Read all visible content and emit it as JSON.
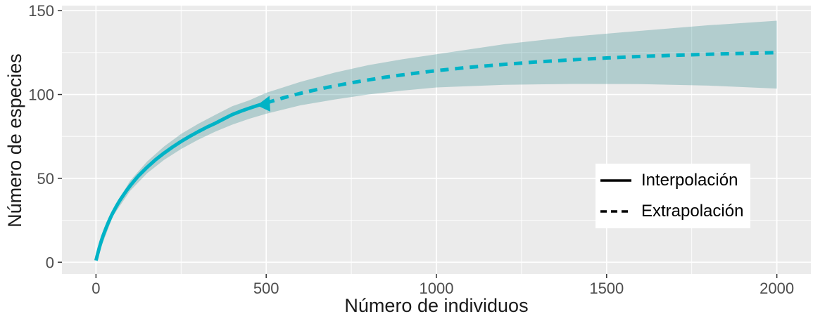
{
  "chart_data": {
    "type": "line",
    "title": "",
    "xlabel": "Número de individuos",
    "ylabel": "Número de especies",
    "xlim": [
      -100,
      2100
    ],
    "ylim": [
      -7,
      153
    ],
    "x_ticks": [
      0,
      500,
      1000,
      1500,
      2000
    ],
    "y_ticks": [
      0,
      50,
      100,
      150
    ],
    "x_minor_ticks": [
      250,
      750,
      1250,
      1750
    ],
    "y_minor_ticks": [
      25,
      75,
      125
    ],
    "grid": true,
    "legend_position": "inside-bottom-right",
    "series": [
      {
        "name": "Interpolación",
        "linetype": "solid",
        "points": [
          [
            0,
            1
          ],
          [
            5,
            5
          ],
          [
            10,
            8.8
          ],
          [
            15,
            12.2
          ],
          [
            20,
            15.3
          ],
          [
            25,
            18.1
          ],
          [
            30,
            20.7
          ],
          [
            35,
            23.1
          ],
          [
            40,
            25.4
          ],
          [
            45,
            27.6
          ],
          [
            50,
            29.6
          ],
          [
            60,
            33.4
          ],
          [
            70,
            36.8
          ],
          [
            80,
            39.9
          ],
          [
            90,
            42.8
          ],
          [
            100,
            45.5
          ],
          [
            115,
            49.2
          ],
          [
            125,
            51.5
          ],
          [
            150,
            56.6
          ],
          [
            175,
            61.1
          ],
          [
            200,
            65.1
          ],
          [
            225,
            68.7
          ],
          [
            250,
            72
          ],
          [
            275,
            75
          ],
          [
            300,
            77.8
          ],
          [
            325,
            80.4
          ],
          [
            350,
            82.8
          ],
          [
            375,
            85.4
          ],
          [
            400,
            88
          ],
          [
            425,
            90
          ],
          [
            450,
            91.8
          ],
          [
            475,
            93.5
          ],
          [
            500,
            95
          ]
        ]
      },
      {
        "name": "Extrapolación",
        "linetype": "dashed",
        "points": [
          [
            500,
            95
          ],
          [
            550,
            98
          ],
          [
            600,
            100.7
          ],
          [
            650,
            103
          ],
          [
            700,
            105.1
          ],
          [
            750,
            107
          ],
          [
            800,
            108.7
          ],
          [
            850,
            110.3
          ],
          [
            900,
            111.7
          ],
          [
            950,
            113
          ],
          [
            1000,
            114.2
          ],
          [
            1100,
            116.3
          ],
          [
            1200,
            118
          ],
          [
            1300,
            119.5
          ],
          [
            1400,
            120.7
          ],
          [
            1500,
            121.8
          ],
          [
            1600,
            122.7
          ],
          [
            1700,
            123.4
          ],
          [
            1800,
            124
          ],
          [
            1900,
            124.5
          ],
          [
            2000,
            125
          ]
        ]
      }
    ],
    "band": [
      [
        0,
        1,
        1
      ],
      [
        50,
        27.5,
        31.5
      ],
      [
        100,
        42.5,
        48.5
      ],
      [
        150,
        53,
        60
      ],
      [
        200,
        61,
        69
      ],
      [
        250,
        67.5,
        76.5
      ],
      [
        300,
        73,
        82.5
      ],
      [
        350,
        77.8,
        87.8
      ],
      [
        400,
        82,
        93
      ],
      [
        450,
        85.5,
        96.5
      ],
      [
        500,
        88.5,
        101
      ],
      [
        600,
        93.5,
        107.5
      ],
      [
        700,
        97,
        113
      ],
      [
        800,
        100,
        117.5
      ],
      [
        900,
        102.3,
        121
      ],
      [
        1000,
        104.2,
        124
      ],
      [
        1200,
        105.8,
        130
      ],
      [
        1400,
        106.3,
        134.5
      ],
      [
        1600,
        106.2,
        138
      ],
      [
        1800,
        105.3,
        141.3
      ],
      [
        2000,
        103.5,
        144
      ]
    ],
    "marker": {
      "x": 500,
      "y": 95,
      "shape": "triangle",
      "rotation": 25,
      "size": 11
    },
    "colors": {
      "line": "#00b3c6",
      "band_fill": "#1b7e82",
      "band_opacity": 0.27,
      "panel_bg": "#ebebeb",
      "grid": "#ffffff",
      "tick_text": "#4d4d4d",
      "tick_mark": "#333333",
      "title_text": "#1a1a1a",
      "legend_line": "#000000",
      "legend_bg": "#ffffff"
    }
  },
  "legend": {
    "items": [
      {
        "label": "Interpolación",
        "linetype": "solid"
      },
      {
        "label": "Extrapolación",
        "linetype": "dashed"
      }
    ]
  }
}
